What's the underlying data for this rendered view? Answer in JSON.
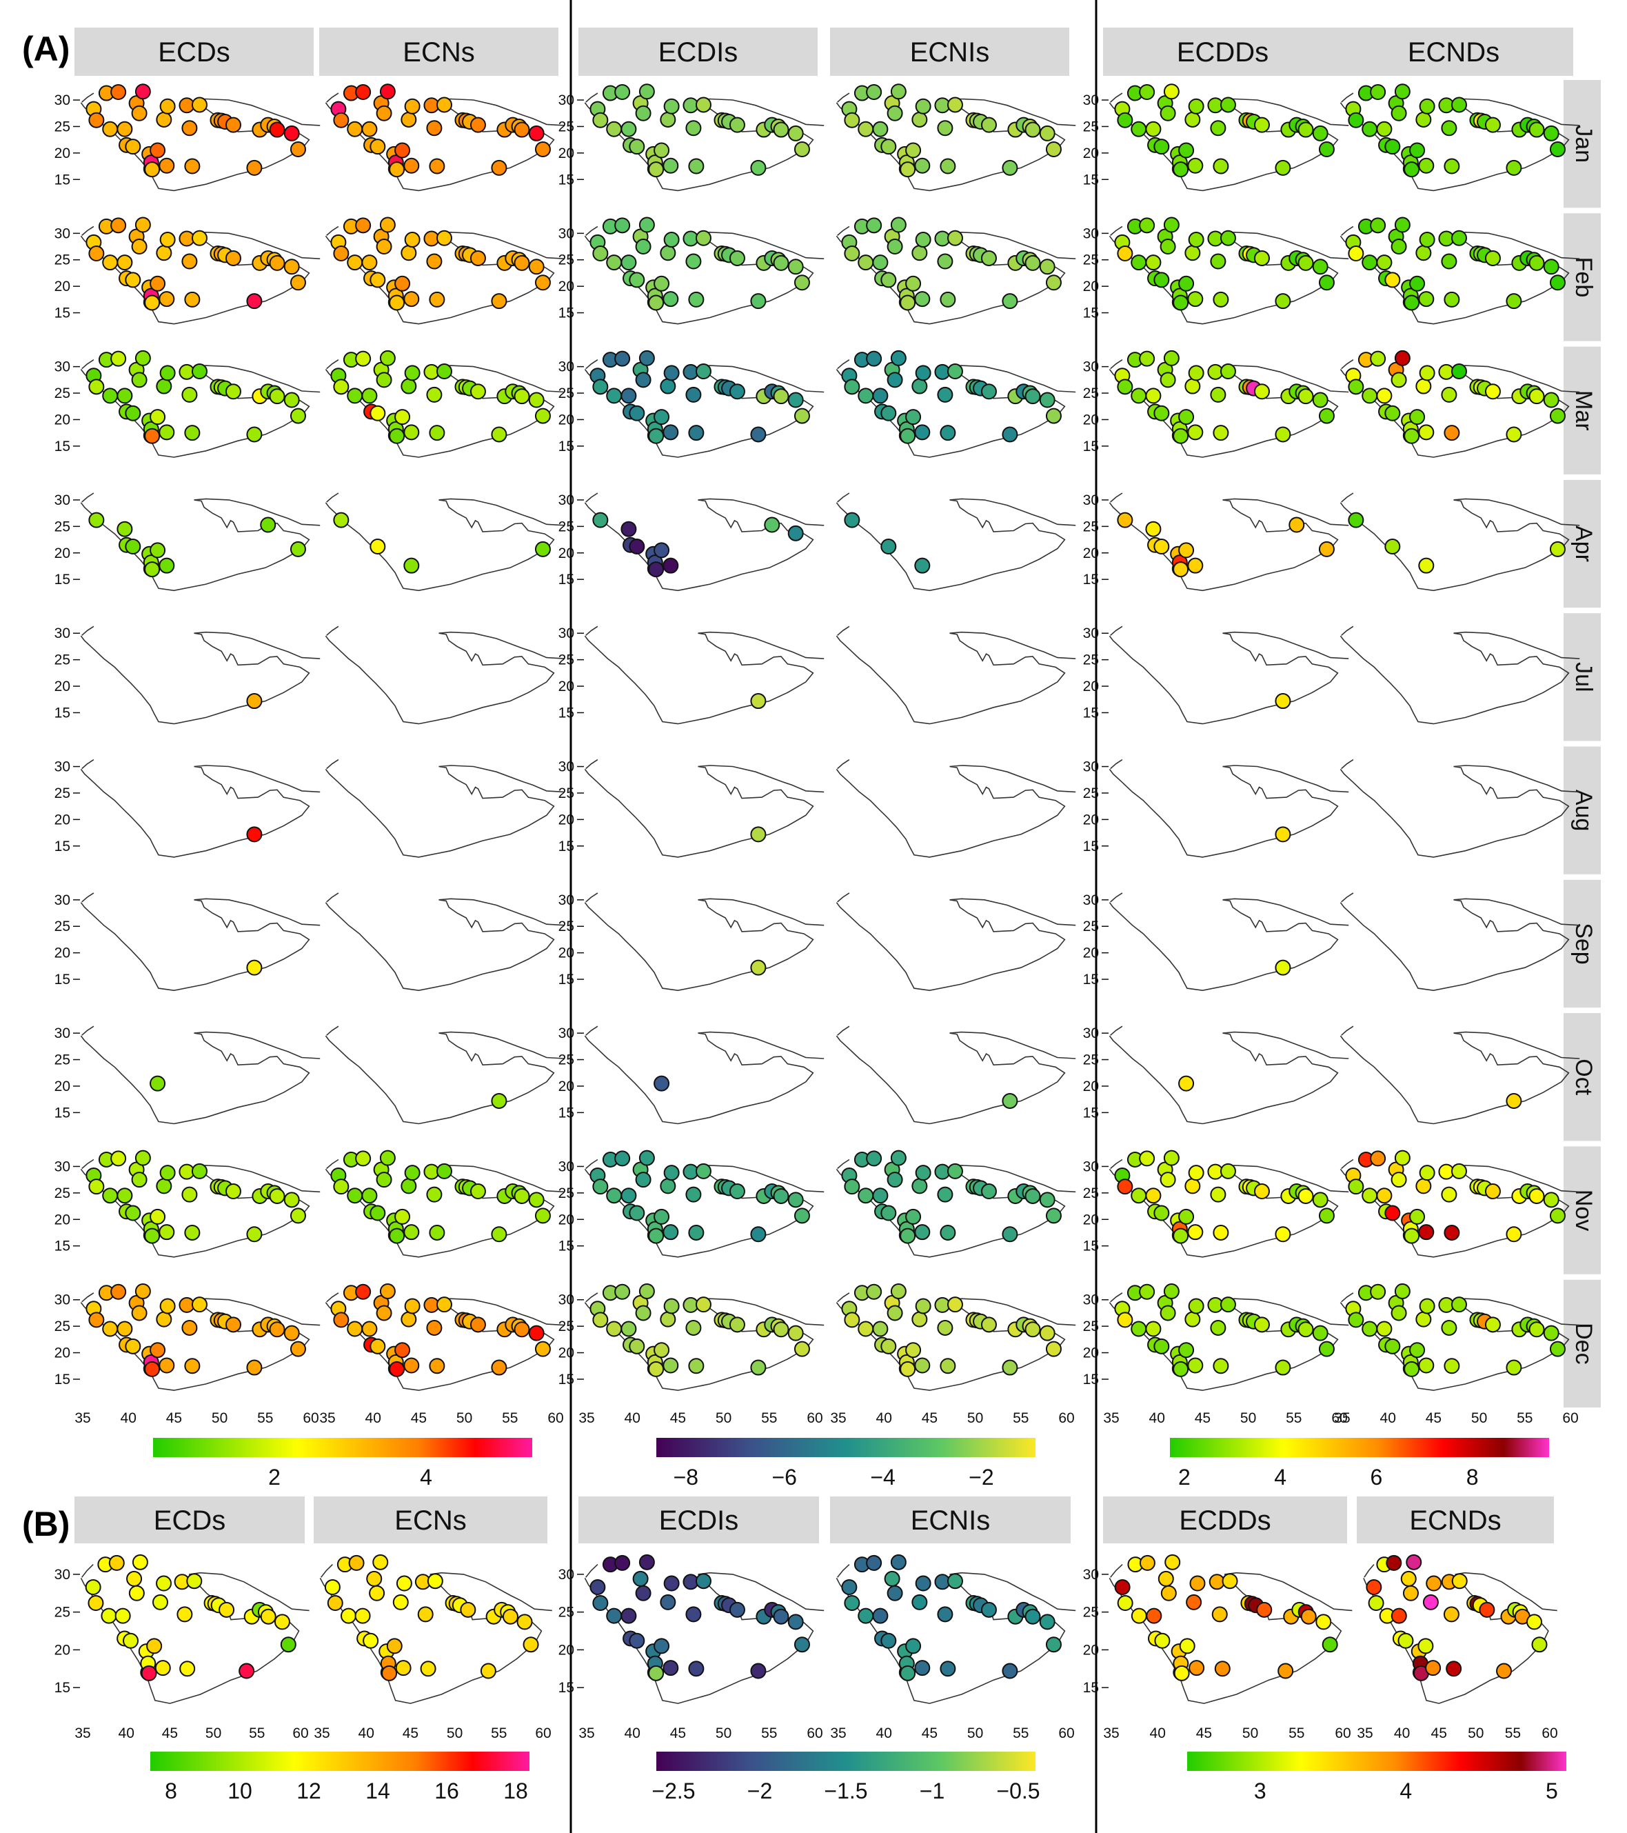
{
  "chart_data": {
    "type": "scatter",
    "panel_labels": [
      "(A)",
      "(B)"
    ],
    "groups": [
      {
        "variables": [
          "ECDs",
          "ECNs"
        ],
        "colormap": "green-yellow-red-magenta"
      },
      {
        "variables": [
          "ECDIs",
          "ECNIs"
        ],
        "colormap": "viridis"
      },
      {
        "variables": [
          "ECDDs",
          "ECNDs"
        ],
        "colormap": "green-yellow-red-darkred-magenta"
      }
    ],
    "months": [
      "Jan",
      "Feb",
      "Mar",
      "Apr",
      "Jul",
      "Aug",
      "Sep",
      "Oct",
      "Nov",
      "Dec"
    ],
    "x_ticks": [
      "35",
      "40",
      "45",
      "50",
      "55",
      "60"
    ],
    "y_ticks": [
      "30",
      "25",
      "20",
      "15"
    ],
    "xlim": [
      35,
      60
    ],
    "ylim": [
      12,
      33
    ],
    "colorbars_A": [
      {
        "ticks": [
          "2",
          "4"
        ],
        "tick_values": [
          2,
          4
        ],
        "range": [
          0.4,
          5.4
        ]
      },
      {
        "ticks": [
          "−8",
          "−6",
          "−4",
          "−2"
        ],
        "tick_values": [
          -8,
          -6,
          -4,
          -2
        ],
        "range": [
          -8.6,
          -0.9
        ]
      },
      {
        "ticks": [
          "2",
          "4",
          "6",
          "8"
        ],
        "tick_values": [
          2,
          4,
          6,
          8
        ],
        "range": [
          1.7,
          9.6
        ]
      }
    ],
    "colorbars_B": [
      {
        "ticks": [
          "8",
          "10",
          "12",
          "14",
          "16",
          "18"
        ],
        "tick_values": [
          8,
          10,
          12,
          14,
          16,
          18
        ],
        "range": [
          7.4,
          18.4
        ]
      },
      {
        "ticks": [
          "−2.5",
          "−2",
          "−1.5",
          "−1",
          "−0.5"
        ],
        "tick_values": [
          -2.5,
          -2,
          -1.5,
          -1,
          -0.5
        ],
        "range": [
          -2.6,
          -0.4
        ]
      },
      {
        "ticks": [
          "3",
          "4",
          "5"
        ],
        "tick_values": [
          3,
          4,
          5
        ],
        "range": [
          2.5,
          5.1
        ]
      }
    ],
    "stations": [
      [
        36.2,
        28.3
      ],
      [
        36.5,
        26.2
      ],
      [
        37.6,
        31.3
      ],
      [
        38.9,
        31.5
      ],
      [
        38.0,
        24.5
      ],
      [
        39.6,
        24.5
      ],
      [
        39.8,
        21.5
      ],
      [
        40.5,
        21.2
      ],
      [
        40.9,
        29.4
      ],
      [
        41.2,
        27.5
      ],
      [
        41.6,
        31.6
      ],
      [
        42.3,
        19.8
      ],
      [
        42.5,
        17.0
      ],
      [
        42.5,
        18.2
      ],
      [
        42.6,
        16.9
      ],
      [
        43.2,
        20.5
      ],
      [
        43.9,
        26.3
      ],
      [
        44.2,
        17.6
      ],
      [
        44.3,
        28.8
      ],
      [
        46.4,
        29.0
      ],
      [
        46.7,
        24.7
      ],
      [
        47.0,
        17.5
      ],
      [
        47.8,
        29.1
      ],
      [
        49.8,
        26.2
      ],
      [
        50.2,
        26.1
      ],
      [
        50.6,
        25.9
      ],
      [
        51.5,
        25.3
      ],
      [
        53.8,
        17.2
      ],
      [
        54.4,
        24.4
      ],
      [
        55.3,
        25.3
      ],
      [
        56.0,
        25.0
      ],
      [
        56.3,
        24.4
      ],
      [
        57.9,
        23.7
      ],
      [
        58.6,
        20.7
      ]
    ],
    "station_sets": {
      "full": [
        0,
        1,
        2,
        3,
        4,
        5,
        6,
        7,
        8,
        9,
        10,
        11,
        12,
        13,
        14,
        15,
        16,
        17,
        18,
        19,
        20,
        21,
        22,
        23,
        24,
        25,
        26,
        27,
        28,
        29,
        30,
        31,
        32,
        33
      ],
      "apr_d": [
        1,
        5,
        6,
        7,
        11,
        12,
        13,
        14,
        15,
        17,
        29,
        33
      ],
      "apr_n": [
        1,
        7,
        17,
        33
      ],
      "apr_i": [
        1,
        5,
        6,
        7,
        11,
        12,
        13,
        14,
        15,
        17,
        29,
        32
      ],
      "apr_ni": [
        1,
        7,
        17
      ],
      "apr_dd": [
        1,
        5,
        6,
        7,
        11,
        12,
        13,
        14,
        15,
        17,
        29,
        33
      ],
      "apr_nd": [
        1,
        7,
        17,
        33
      ],
      "oct_d": [
        15
      ],
      "oct_n": [
        27
      ],
      "single": [
        27
      ]
    },
    "cells": {
      "r0": [
        {
          "set": "full",
          "base": 3.6,
          "amp": 0.5,
          "spec": {
            "10": 5.0,
            "13": 5.2,
            "31": 4.6,
            "32": 4.8,
            "25": 4.0
          }
        },
        {
          "set": "full",
          "base": 3.7,
          "amp": 0.5,
          "spec": {
            "0": 5.2,
            "10": 4.8,
            "13": 5.0,
            "3": 4.5,
            "2": 4.2,
            "32": 4.8
          }
        },
        {
          "set": "full",
          "base": -2.3,
          "amp": 0.4,
          "spec": {}
        },
        {
          "set": "full",
          "base": -2.1,
          "amp": 0.4,
          "spec": {}
        },
        {
          "set": "full",
          "base": 2.6,
          "amp": 0.6,
          "spec": {
            "24": 5.5,
            "10": 3.8
          }
        },
        {
          "set": "full",
          "base": 2.4,
          "amp": 0.6,
          "spec": {
            "24": 4.5
          }
        }
      ],
      "r1": [
        {
          "set": "full",
          "base": 3.3,
          "amp": 0.4,
          "spec": {
            "13": 5.2,
            "27": 5.0
          }
        },
        {
          "set": "full",
          "base": 3.4,
          "amp": 0.4,
          "spec": {}
        },
        {
          "set": "full",
          "base": -2.6,
          "amp": 0.4,
          "spec": {}
        },
        {
          "set": "full",
          "base": -2.3,
          "amp": 0.4,
          "spec": {}
        },
        {
          "set": "full",
          "base": 2.6,
          "amp": 0.6,
          "spec": {
            "1": 4.8,
            "24": 4.2
          }
        },
        {
          "set": "full",
          "base": 2.4,
          "amp": 0.6,
          "spec": {
            "7": 4.5,
            "1": 4.0
          }
        }
      ],
      "r2": [
        {
          "set": "full",
          "base": 1.4,
          "amp": 0.5,
          "spec": {
            "14": 4.0,
            "28": 2.4
          }
        },
        {
          "set": "full",
          "base": 1.5,
          "amp": 0.5,
          "spec": {
            "6": 4.5,
            "7": 2.2
          }
        },
        {
          "set": "full",
          "base": -5.0,
          "amp": 1.0,
          "spec": {
            "28": -2.0,
            "31": -2.0,
            "33": -2.0
          }
        },
        {
          "set": "full",
          "base": -4.2,
          "amp": 0.9,
          "spec": {
            "28": -2.2,
            "33": -2.2
          }
        },
        {
          "set": "full",
          "base": 3.0,
          "amp": 0.6,
          "spec": {
            "25": 9.5,
            "24": 6.0
          }
        },
        {
          "set": "full",
          "base": 3.2,
          "amp": 0.8,
          "spec": {
            "10": 8.0,
            "8": 6.0,
            "21": 6.0,
            "2": 5.2,
            "22": 1.6
          }
        }
      ],
      "r3": [
        {
          "set": "apr_d",
          "base": 1.2,
          "amp": 0.2,
          "spec": {}
        },
        {
          "set": "apr_n",
          "base": 1.3,
          "amp": 0.3,
          "spec": {
            "7": 2.4
          }
        },
        {
          "set": "apr_i",
          "base": -7.5,
          "amp": 1.0,
          "spec": {
            "1": -4.0,
            "29": -3.0,
            "32": -5.0
          }
        },
        {
          "set": "apr_ni",
          "base": -4.4,
          "amp": 0.6,
          "spec": {}
        },
        {
          "set": "apr_dd",
          "base": 4.6,
          "amp": 0.9,
          "spec": {
            "12": 6.5,
            "13": 7.0
          }
        },
        {
          "set": "apr_nd",
          "base": 3.5,
          "amp": 0.5,
          "spec": {
            "1": 2.2,
            "17": 3.8
          }
        }
      ],
      "r4": [
        {
          "set": "single",
          "base": 3.3,
          "amp": 0,
          "spec": {}
        },
        null,
        {
          "set": "single",
          "base": -1.6,
          "amp": 0,
          "spec": {}
        },
        null,
        {
          "set": "single",
          "base": 4.5,
          "amp": 0,
          "spec": {}
        },
        null
      ],
      "r5": [
        {
          "set": "single",
          "base": 4.6,
          "amp": 0,
          "spec": {}
        },
        null,
        {
          "set": "single",
          "base": -1.8,
          "amp": 0,
          "spec": {}
        },
        null,
        {
          "set": "single",
          "base": 4.6,
          "amp": 0,
          "spec": {}
        },
        null
      ],
      "r6": [
        {
          "set": "single",
          "base": 2.5,
          "amp": 0,
          "spec": {}
        },
        null,
        {
          "set": "single",
          "base": -1.6,
          "amp": 0,
          "spec": {}
        },
        null,
        {
          "set": "single",
          "base": 3.8,
          "amp": 0,
          "spec": {}
        },
        null
      ],
      "r7": [
        {
          "set": "oct_d",
          "base": 1.2,
          "amp": 0,
          "spec": {}
        },
        {
          "set": "oct_n",
          "base": 1.4,
          "amp": 0,
          "spec": {}
        },
        {
          "set": "oct_d",
          "base": -6.5,
          "amp": 0,
          "spec": {}
        },
        {
          "set": "oct_n",
          "base": -2.6,
          "amp": 0,
          "spec": {}
        },
        {
          "set": "oct_d",
          "base": 4.5,
          "amp": 0,
          "spec": {}
        },
        {
          "set": "oct_n",
          "base": 4.7,
          "amp": 0,
          "spec": {}
        }
      ],
      "r8": [
        {
          "set": "full",
          "base": 1.6,
          "amp": 0.4,
          "spec": {}
        },
        {
          "set": "full",
          "base": 1.4,
          "amp": 0.4,
          "spec": {}
        },
        {
          "set": "full",
          "base": -3.9,
          "amp": 0.6,
          "spec": {
            "27": -5.0
          }
        },
        {
          "set": "full",
          "base": -3.7,
          "amp": 0.5,
          "spec": {}
        },
        {
          "set": "full",
          "base": 3.6,
          "amp": 1.0,
          "spec": {
            "1": 6.8,
            "12": 6.2,
            "13": 6.5,
            "0": 2.2
          }
        },
        {
          "set": "full",
          "base": 3.8,
          "amp": 1.0,
          "spec": {
            "2": 7.0,
            "3": 6.0,
            "7": 7.4,
            "12": 7.6,
            "21": 8.0,
            "11": 6.5,
            "17": 8.0,
            "8": 4.8,
            "18": 3.5
          }
        }
      ],
      "r9": [
        {
          "set": "full",
          "base": 3.4,
          "amp": 0.5,
          "spec": {
            "13": 5.3,
            "12": 4.6,
            "14": 4.3
          }
        },
        {
          "set": "full",
          "base": 3.6,
          "amp": 0.6,
          "spec": {
            "3": 4.4,
            "6": 4.6,
            "12": 4.8,
            "14": 4.6,
            "33": 3.2,
            "32": 4.6
          }
        },
        {
          "set": "full",
          "base": -1.9,
          "amp": 0.4,
          "spec": {}
        },
        {
          "set": "full",
          "base": -1.7,
          "amp": 0.4,
          "spec": {}
        },
        {
          "set": "full",
          "base": 2.9,
          "amp": 0.5,
          "spec": {
            "1": 4.5
          }
        },
        {
          "set": "full",
          "base": 3.0,
          "amp": 0.5,
          "spec": {
            "25": 6.0
          }
        }
      ],
      "b": [
        {
          "set": "full",
          "base": 12.0,
          "amp": 1.0,
          "spec": {
            "14": 17.5,
            "27": 17.5,
            "29": 9.0,
            "33": 8.5
          }
        },
        {
          "set": "full",
          "base": 12.5,
          "amp": 1.0,
          "spec": {
            "14": 15.0,
            "13": 14.5
          }
        },
        {
          "set": "full",
          "base": -2.0,
          "amp": 0.35,
          "spec": {
            "2": -2.5,
            "3": -2.5,
            "10": -2.4,
            "14": -0.8
          }
        },
        {
          "set": "full",
          "base": -1.6,
          "amp": 0.3,
          "spec": {}
        },
        {
          "set": "full",
          "base": 3.6,
          "amp": 0.5,
          "spec": {
            "0": 4.6,
            "24": 4.8,
            "25": 4.8,
            "30": 4.6,
            "33": 2.7
          }
        },
        {
          "set": "full",
          "base": 3.6,
          "amp": 0.6,
          "spec": {
            "10": 5.0,
            "3": 4.7,
            "24": 4.8,
            "13": 4.8,
            "14": 4.9,
            "12": 4.6,
            "16": 5.2,
            "21": 4.6
          }
        }
      ]
    }
  }
}
